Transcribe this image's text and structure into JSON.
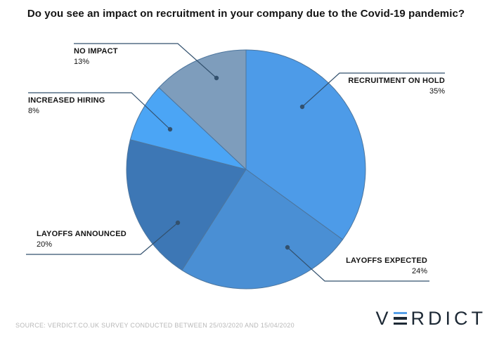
{
  "title": "Do you see an impact on recruitment in your company due to the Covid-19 pandemic?",
  "source": "SOURCE: VERDICT.CO.UK SURVEY CONDUCTED BETWEEN 25/03/2020 AND 15/04/2020",
  "logo": {
    "pre": "V",
    "post": "RDICT",
    "accent_color": "#56a0e8",
    "text_color": "#1d2935"
  },
  "chart_data": {
    "type": "pie",
    "title": "Do you see an impact on recruitment in your company due to the Covid-19 pandemic?",
    "start_angle_deg": 0,
    "direction": "clockwise",
    "legend_position": "callout-labels",
    "stroke_color": "#4d769e",
    "leader_color": "#33516e",
    "segments": [
      {
        "label": "RECRUITMENT ON HOLD",
        "value": 35,
        "pct_label": "35%",
        "color": "#4d9be8"
      },
      {
        "label": "LAYOFFS EXPECTED",
        "value": 24,
        "pct_label": "24%",
        "color": "#4a8fd4"
      },
      {
        "label": "LAYOFFS ANNOUNCED",
        "value": 20,
        "pct_label": "20%",
        "color": "#3d77b5"
      },
      {
        "label": "INCREASED HIRING",
        "value": 8,
        "pct_label": "8%",
        "color": "#4ba5f5"
      },
      {
        "label": "NO IMPACT",
        "value": 13,
        "pct_label": "13%",
        "color": "#7e9dbc"
      }
    ]
  }
}
